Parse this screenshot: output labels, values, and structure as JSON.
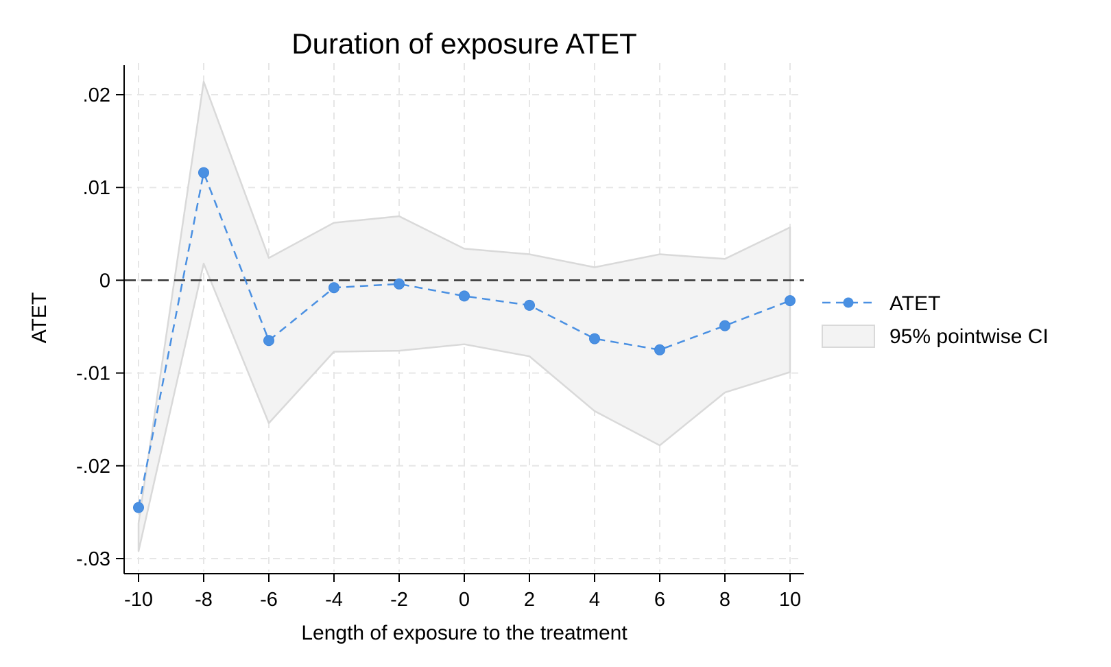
{
  "chart_data": {
    "type": "line",
    "title": "Duration of exposure ATET",
    "xlabel": "Length of exposure to the treatment",
    "ylabel": "ATET",
    "xlim": [
      -10,
      10
    ],
    "ylim": [
      -0.03,
      0.02
    ],
    "x_ticks": [
      -10,
      -8,
      -6,
      -4,
      -2,
      0,
      2,
      4,
      6,
      8,
      10
    ],
    "x_tick_labels": [
      "-10",
      "-8",
      "-6",
      "-4",
      "-2",
      "0",
      "2",
      "4",
      "6",
      "8",
      "10"
    ],
    "y_ticks": [
      0.02,
      0.01,
      0,
      -0.01,
      -0.02,
      -0.03
    ],
    "y_tick_labels": [
      ".02",
      ".01",
      "0",
      "-.01",
      "-.02",
      "-.03"
    ],
    "grid": true,
    "reference_line_y": 0,
    "legend_position": "right",
    "x": [
      -10,
      -8,
      -6,
      -4,
      -2,
      0,
      2,
      4,
      6,
      8,
      10
    ],
    "series": [
      {
        "name": "ATET",
        "style": "dashed line with markers",
        "color": "#4a90e2",
        "values": [
          -0.0245,
          0.0116,
          -0.0065,
          -0.0008,
          -0.0004,
          -0.0017,
          -0.0027,
          -0.0063,
          -0.0075,
          -0.0049,
          -0.0022
        ]
      },
      {
        "name": "95% pointwise CI",
        "style": "shaded band",
        "color": "#f3f3f3",
        "lower": [
          -0.0292,
          0.0018,
          -0.0154,
          -0.0077,
          -0.0076,
          -0.0069,
          -0.0082,
          -0.0141,
          -0.0178,
          -0.0121,
          -0.0099
        ],
        "upper": [
          -0.0262,
          0.0214,
          0.0024,
          0.0062,
          0.0069,
          0.0034,
          0.0028,
          0.0014,
          0.0028,
          0.0023,
          0.0057
        ]
      }
    ]
  }
}
